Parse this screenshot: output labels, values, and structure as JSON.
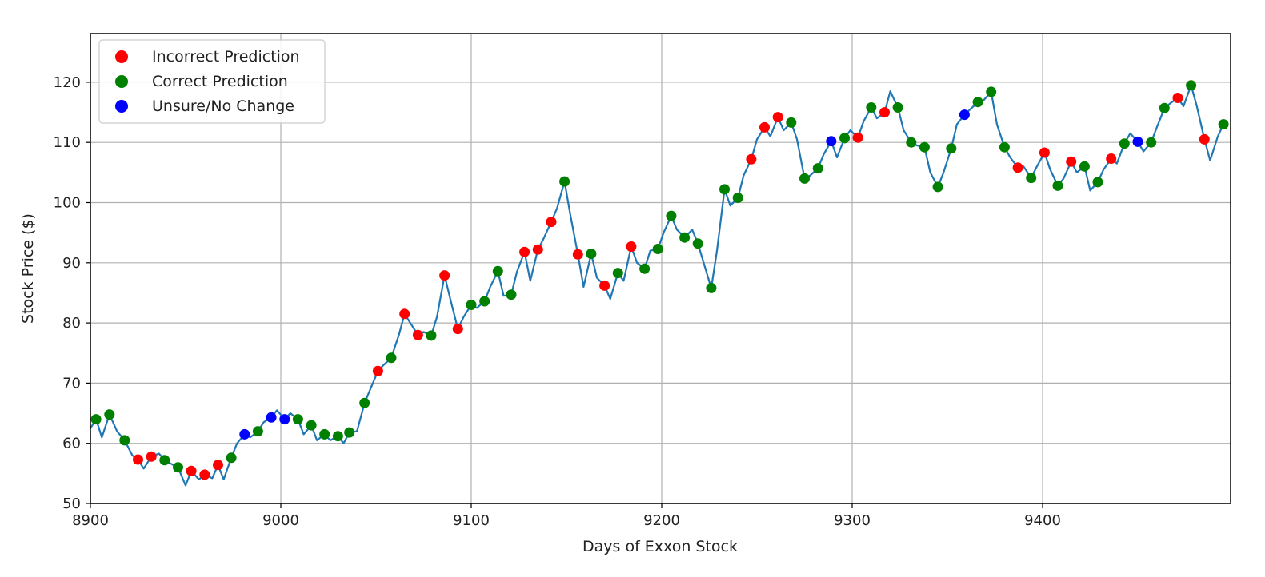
{
  "chart_data": {
    "type": "line",
    "xlabel": "Days of Exxon Stock",
    "ylabel": "Stock Price ($)",
    "xlim": [
      8900,
      9499
    ],
    "ylim": [
      50,
      128
    ],
    "xticks": [
      8900,
      9000,
      9100,
      9200,
      9300,
      9400
    ],
    "yticks": [
      50,
      60,
      70,
      80,
      90,
      100,
      110,
      120
    ],
    "grid": true,
    "legend_position": "top-left",
    "colors": {
      "price_line": "#1f77b4",
      "incorrect": "#ff0000",
      "correct": "#008000",
      "unsure": "#0000ff"
    },
    "legend": [
      {
        "label": "Incorrect Prediction",
        "color": "#ff0000"
      },
      {
        "label": "Correct Prediction",
        "color": "#008000"
      },
      {
        "label": "Unsure/No Change",
        "color": "#0000ff"
      }
    ],
    "price_keypoints": [
      [
        8900,
        62.5
      ],
      [
        8903,
        64.0
      ],
      [
        8906,
        61.0
      ],
      [
        8910,
        64.8
      ],
      [
        8914,
        62.0
      ],
      [
        8918,
        60.5
      ],
      [
        8922,
        58.0
      ],
      [
        8925,
        57.3
      ],
      [
        8928,
        55.8
      ],
      [
        8932,
        57.8
      ],
      [
        8936,
        58.3
      ],
      [
        8939,
        57.2
      ],
      [
        8943,
        56.5
      ],
      [
        8946,
        56.0
      ],
      [
        8950,
        53.0
      ],
      [
        8953,
        55.4
      ],
      [
        8957,
        54.0
      ],
      [
        8960,
        54.8
      ],
      [
        8964,
        54.2
      ],
      [
        8967,
        56.4
      ],
      [
        8970,
        54.0
      ],
      [
        8974,
        57.6
      ],
      [
        8977,
        60.0
      ],
      [
        8981,
        61.5
      ],
      [
        8984,
        61.0
      ],
      [
        8988,
        62.0
      ],
      [
        8991,
        63.5
      ],
      [
        8995,
        64.3
      ],
      [
        8998,
        65.5
      ],
      [
        9002,
        64.0
      ],
      [
        9005,
        65.0
      ],
      [
        9009,
        64.0
      ],
      [
        9012,
        61.5
      ],
      [
        9016,
        63.0
      ],
      [
        9019,
        60.5
      ],
      [
        9023,
        61.5
      ],
      [
        9026,
        60.5
      ],
      [
        9030,
        61.2
      ],
      [
        9033,
        60.0
      ],
      [
        9036,
        61.8
      ],
      [
        9040,
        62.0
      ],
      [
        9044,
        66.7
      ],
      [
        9047,
        69.0
      ],
      [
        9051,
        72.0
      ],
      [
        9054,
        73.0
      ],
      [
        9058,
        74.2
      ],
      [
        9062,
        78.0
      ],
      [
        9065,
        81.5
      ],
      [
        9068,
        80.0
      ],
      [
        9072,
        78.0
      ],
      [
        9075,
        78.5
      ],
      [
        9079,
        77.9
      ],
      [
        9082,
        81.0
      ],
      [
        9086,
        87.9
      ],
      [
        9089,
        84.0
      ],
      [
        9093,
        79.0
      ],
      [
        9096,
        81.0
      ],
      [
        9100,
        83.0
      ],
      [
        9103,
        82.5
      ],
      [
        9107,
        83.6
      ],
      [
        9110,
        86.0
      ],
      [
        9114,
        88.6
      ],
      [
        9117,
        84.5
      ],
      [
        9121,
        84.7
      ],
      [
        9124,
        88.5
      ],
      [
        9128,
        91.8
      ],
      [
        9131,
        87.0
      ],
      [
        9135,
        92.2
      ],
      [
        9138,
        94.0
      ],
      [
        9142,
        96.8
      ],
      [
        9145,
        99.0
      ],
      [
        9149,
        103.5
      ],
      [
        9152,
        98.0
      ],
      [
        9156,
        91.4
      ],
      [
        9159,
        86.0
      ],
      [
        9163,
        91.5
      ],
      [
        9166,
        87.5
      ],
      [
        9170,
        86.2
      ],
      [
        9173,
        84.0
      ],
      [
        9177,
        88.3
      ],
      [
        9180,
        87.0
      ],
      [
        9184,
        92.7
      ],
      [
        9187,
        90.0
      ],
      [
        9191,
        89.0
      ],
      [
        9194,
        92.0
      ],
      [
        9198,
        92.3
      ],
      [
        9201,
        95.0
      ],
      [
        9205,
        97.8
      ],
      [
        9208,
        95.5
      ],
      [
        9212,
        94.2
      ],
      [
        9216,
        95.5
      ],
      [
        9219,
        93.2
      ],
      [
        9222,
        90.0
      ],
      [
        9226,
        85.8
      ],
      [
        9229,
        92.0
      ],
      [
        9233,
        102.2
      ],
      [
        9236,
        99.5
      ],
      [
        9240,
        100.8
      ],
      [
        9243,
        104.5
      ],
      [
        9247,
        107.2
      ],
      [
        9250,
        110.5
      ],
      [
        9254,
        112.5
      ],
      [
        9257,
        111.0
      ],
      [
        9261,
        114.2
      ],
      [
        9264,
        112.0
      ],
      [
        9268,
        113.3
      ],
      [
        9271,
        110.5
      ],
      [
        9275,
        104.0
      ],
      [
        9278,
        104.5
      ],
      [
        9282,
        105.7
      ],
      [
        9285,
        108.0
      ],
      [
        9289,
        110.2
      ],
      [
        9292,
        107.5
      ],
      [
        9296,
        110.7
      ],
      [
        9299,
        112.0
      ],
      [
        9303,
        110.8
      ],
      [
        9306,
        113.5
      ],
      [
        9310,
        115.8
      ],
      [
        9313,
        114.0
      ],
      [
        9317,
        115.0
      ],
      [
        9320,
        118.5
      ],
      [
        9324,
        115.8
      ],
      [
        9327,
        112.0
      ],
      [
        9331,
        110.0
      ],
      [
        9334,
        109.5
      ],
      [
        9338,
        109.2
      ],
      [
        9341,
        105.0
      ],
      [
        9345,
        102.6
      ],
      [
        9348,
        105.0
      ],
      [
        9352,
        109.0
      ],
      [
        9355,
        113.0
      ],
      [
        9359,
        114.6
      ],
      [
        9362,
        115.5
      ],
      [
        9366,
        116.7
      ],
      [
        9369,
        117.0
      ],
      [
        9373,
        118.4
      ],
      [
        9376,
        113.0
      ],
      [
        9380,
        109.2
      ],
      [
        9383,
        107.5
      ],
      [
        9387,
        105.8
      ],
      [
        9390,
        106.0
      ],
      [
        9394,
        104.1
      ],
      [
        9397,
        106.0
      ],
      [
        9401,
        108.3
      ],
      [
        9404,
        105.5
      ],
      [
        9408,
        102.8
      ],
      [
        9411,
        104.0
      ],
      [
        9415,
        106.8
      ],
      [
        9418,
        105.0
      ],
      [
        9422,
        106.0
      ],
      [
        9425,
        102.0
      ],
      [
        9429,
        103.4
      ],
      [
        9432,
        105.5
      ],
      [
        9436,
        107.3
      ],
      [
        9439,
        106.5
      ],
      [
        9443,
        109.8
      ],
      [
        9446,
        111.5
      ],
      [
        9450,
        110.1
      ],
      [
        9453,
        108.5
      ],
      [
        9457,
        110.0
      ],
      [
        9460,
        112.5
      ],
      [
        9464,
        115.7
      ],
      [
        9467,
        116.5
      ],
      [
        9471,
        117.4
      ],
      [
        9474,
        116.0
      ],
      [
        9478,
        119.5
      ],
      [
        9481,
        116.0
      ],
      [
        9485,
        110.5
      ],
      [
        9488,
        107.0
      ],
      [
        9492,
        111.0
      ],
      [
        9495,
        113.0
      ]
    ],
    "predictions": {
      "incorrect": [
        [
          8925,
          57.3
        ],
        [
          8932,
          57.8
        ],
        [
          8953,
          55.4
        ],
        [
          8960,
          54.8
        ],
        [
          8967,
          56.4
        ],
        [
          9051,
          72.0
        ],
        [
          9065,
          81.5
        ],
        [
          9072,
          78.0
        ],
        [
          9086,
          87.9
        ],
        [
          9093,
          79.0
        ],
        [
          9128,
          91.8
        ],
        [
          9135,
          92.2
        ],
        [
          9142,
          96.8
        ],
        [
          9156,
          91.4
        ],
        [
          9170,
          86.2
        ],
        [
          9184,
          92.7
        ],
        [
          9247,
          107.2
        ],
        [
          9254,
          112.5
        ],
        [
          9261,
          114.2
        ],
        [
          9303,
          110.8
        ],
        [
          9317,
          115.0
        ],
        [
          9387,
          105.8
        ],
        [
          9401,
          108.3
        ],
        [
          9415,
          106.8
        ],
        [
          9436,
          107.3
        ],
        [
          9471,
          117.4
        ],
        [
          9485,
          110.5
        ]
      ],
      "correct": [
        [
          8903,
          64.0
        ],
        [
          8910,
          64.8
        ],
        [
          8918,
          60.5
        ],
        [
          8939,
          57.2
        ],
        [
          8946,
          56.0
        ],
        [
          8974,
          57.6
        ],
        [
          8988,
          62.0
        ],
        [
          9009,
          64.0
        ],
        [
          9016,
          63.0
        ],
        [
          9023,
          61.5
        ],
        [
          9030,
          61.2
        ],
        [
          9036,
          61.8
        ],
        [
          9044,
          66.7
        ],
        [
          9058,
          74.2
        ],
        [
          9079,
          77.9
        ],
        [
          9100,
          83.0
        ],
        [
          9107,
          83.6
        ],
        [
          9114,
          88.6
        ],
        [
          9121,
          84.7
        ],
        [
          9149,
          103.5
        ],
        [
          9163,
          91.5
        ],
        [
          9177,
          88.3
        ],
        [
          9191,
          89.0
        ],
        [
          9198,
          92.3
        ],
        [
          9205,
          97.8
        ],
        [
          9212,
          94.2
        ],
        [
          9219,
          93.2
        ],
        [
          9226,
          85.8
        ],
        [
          9233,
          102.2
        ],
        [
          9240,
          100.8
        ],
        [
          9268,
          113.3
        ],
        [
          9275,
          104.0
        ],
        [
          9282,
          105.7
        ],
        [
          9296,
          110.7
        ],
        [
          9310,
          115.8
        ],
        [
          9324,
          115.8
        ],
        [
          9331,
          110.0
        ],
        [
          9338,
          109.2
        ],
        [
          9345,
          102.6
        ],
        [
          9352,
          109.0
        ],
        [
          9366,
          116.7
        ],
        [
          9373,
          118.4
        ],
        [
          9380,
          109.2
        ],
        [
          9394,
          104.1
        ],
        [
          9408,
          102.8
        ],
        [
          9422,
          106.0
        ],
        [
          9429,
          103.4
        ],
        [
          9443,
          109.8
        ],
        [
          9457,
          110.0
        ],
        [
          9464,
          115.7
        ],
        [
          9478,
          119.5
        ],
        [
          9495,
          113.0
        ]
      ],
      "unsure": [
        [
          8981,
          61.5
        ],
        [
          8995,
          64.3
        ],
        [
          9002,
          64.0
        ],
        [
          9289,
          110.2
        ],
        [
          9359,
          114.6
        ],
        [
          9450,
          110.1
        ]
      ]
    }
  }
}
